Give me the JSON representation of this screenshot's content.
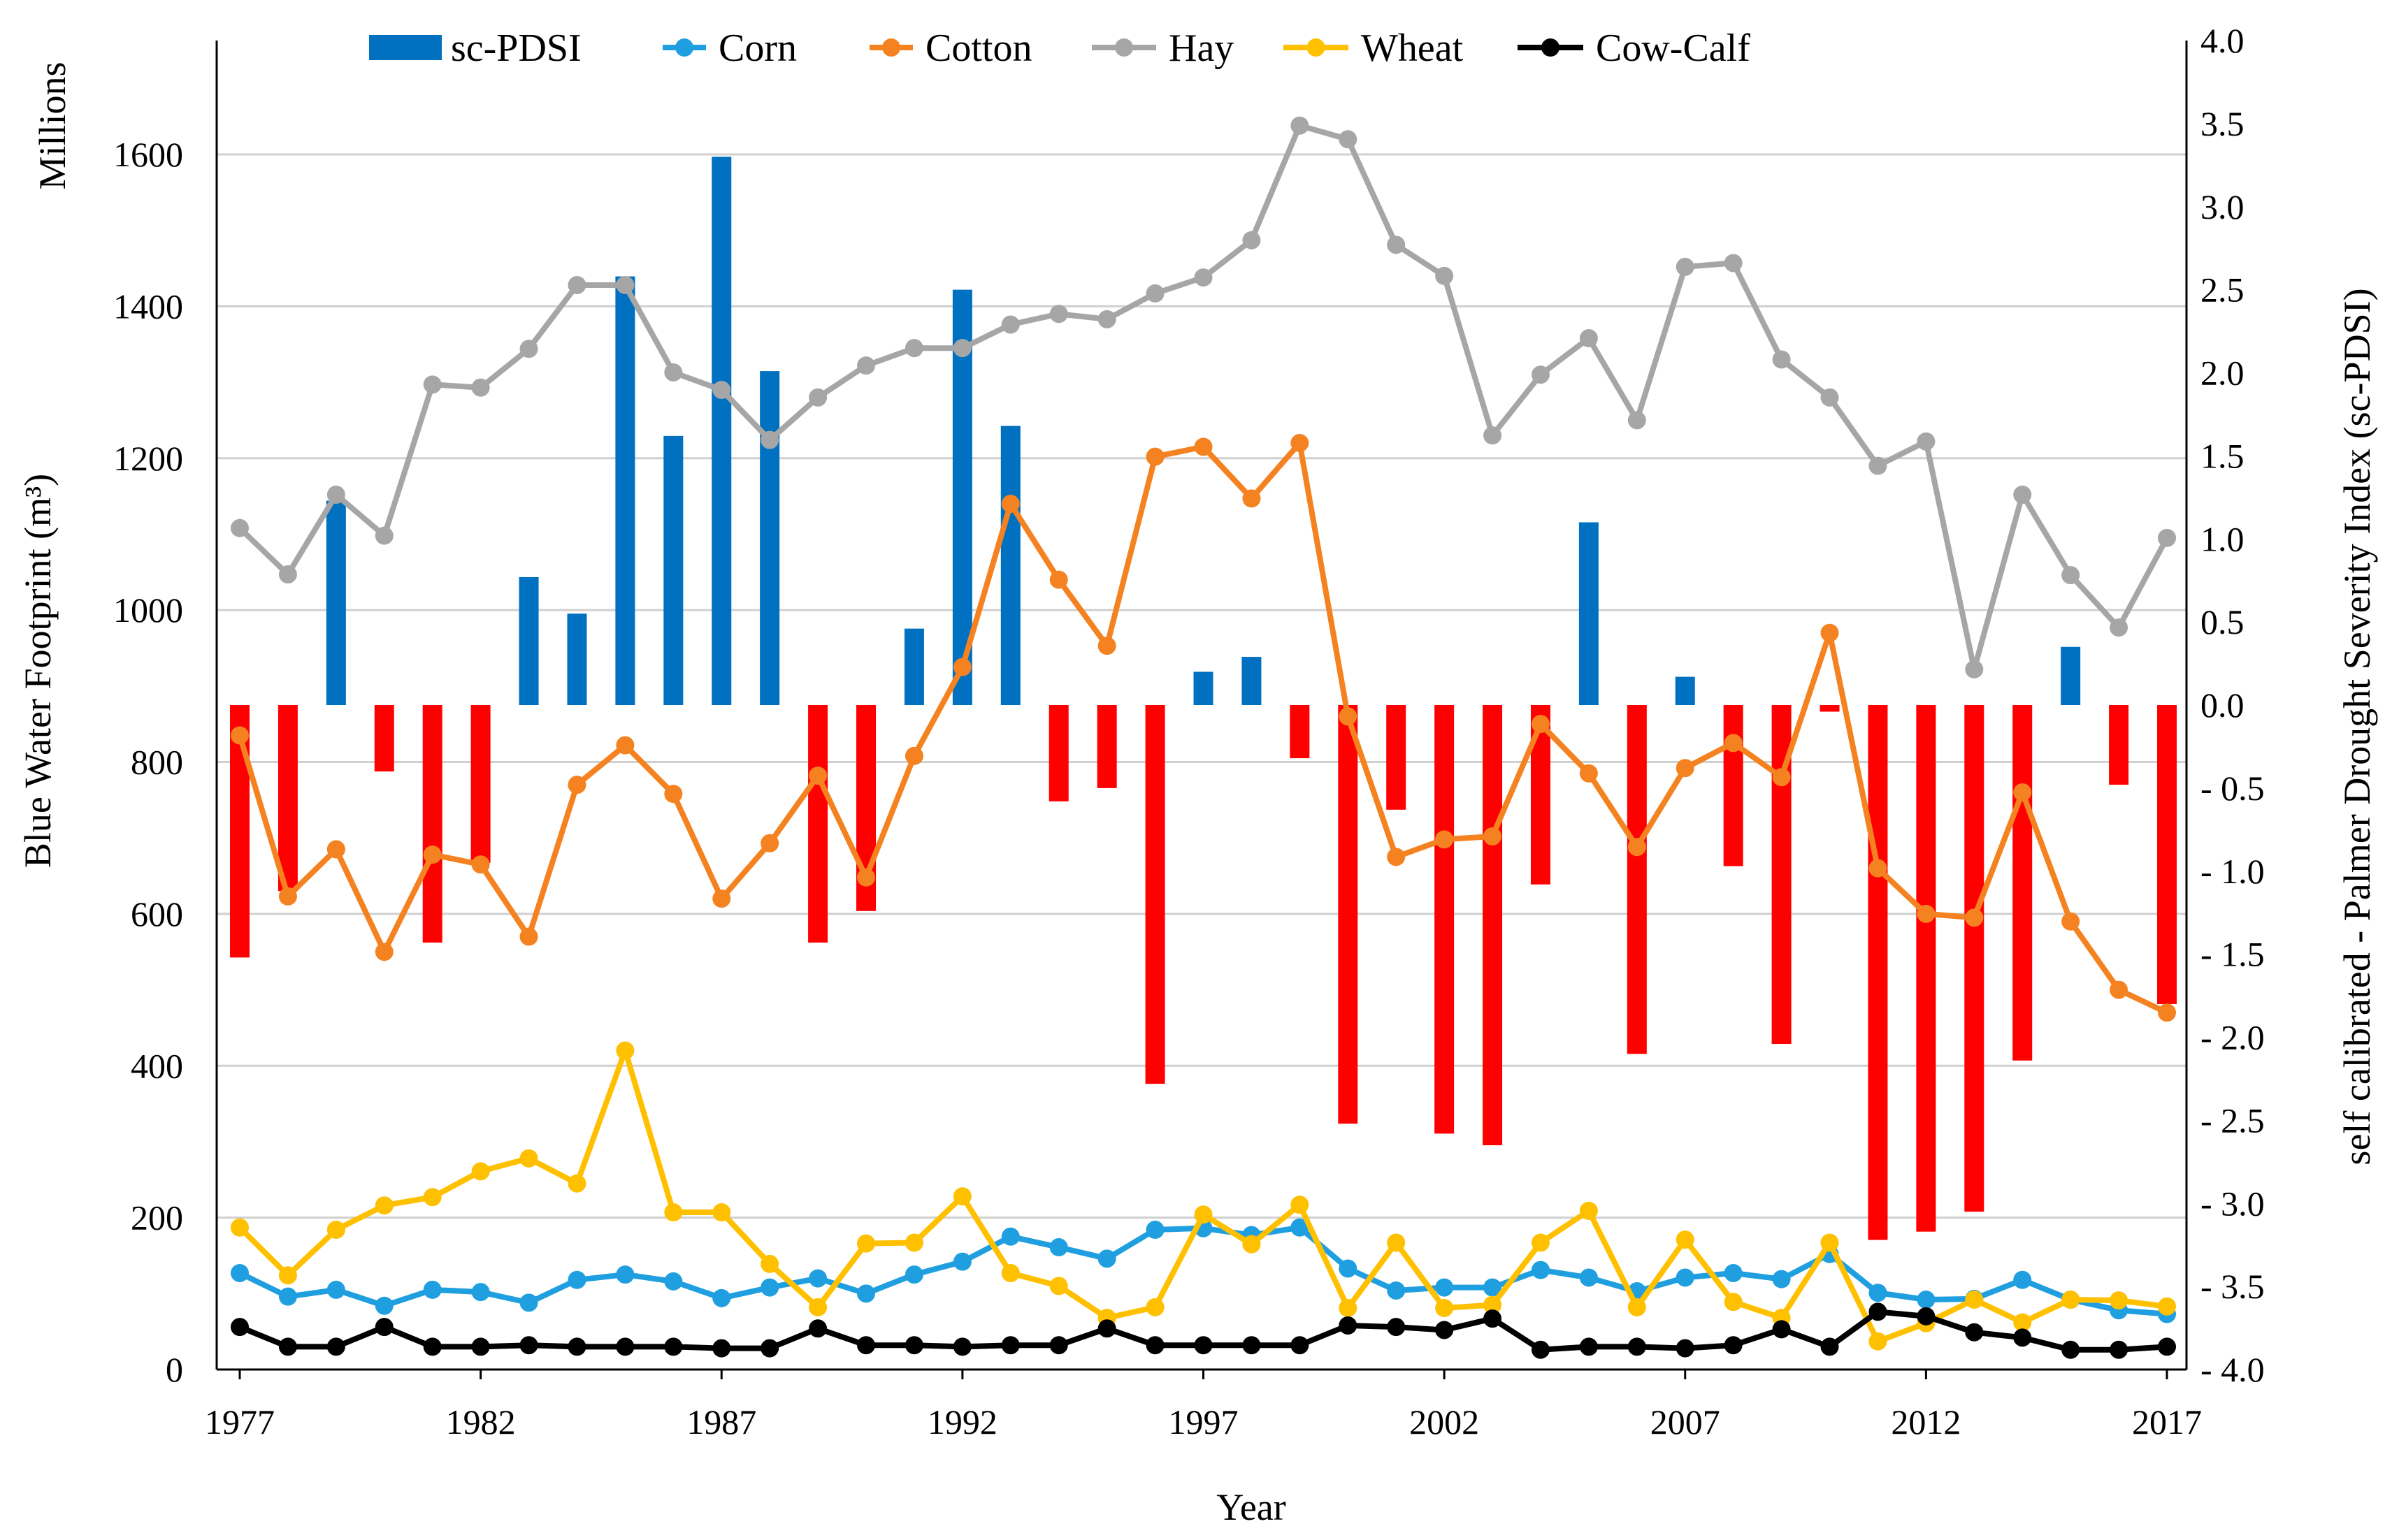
{
  "chart_data": {
    "type": "bar+line",
    "title": "",
    "xlabel": "Year",
    "ylabel_left": "Blue Water Footprint (m³)",
    "ylabel_left_unit_note": "Millions",
    "ylabel_right": "self calibrated - Palmer Drought Severity Index (sc-PDSI)",
    "ylim_left": [
      0,
      1750
    ],
    "ylim_right": [
      -4.0,
      4.0
    ],
    "left_ticks": [
      "0",
      "200",
      "400",
      "600",
      "800",
      "1000",
      "1200",
      "1400",
      "1600"
    ],
    "right_ticks": [
      "4.0",
      "3.5",
      "3.0",
      "2.5",
      "2.0",
      "1.5",
      "1.0",
      "0.5",
      "0.0",
      "- 0.5",
      "- 1.0",
      "- 1.5",
      "- 2.0",
      "- 2.5",
      "- 3.0",
      "- 3.5",
      "- 4.0"
    ],
    "x_ticks": [
      "1977",
      "1982",
      "1987",
      "1992",
      "1997",
      "2002",
      "2007",
      "2012",
      "2017"
    ],
    "years": [
      1977,
      1978,
      1979,
      1980,
      1981,
      1982,
      1983,
      1984,
      1985,
      1986,
      1987,
      1988,
      1989,
      1990,
      1991,
      1992,
      1993,
      1994,
      1995,
      1996,
      1997,
      1998,
      1999,
      2000,
      2001,
      2002,
      2003,
      2004,
      2005,
      2006,
      2007,
      2008,
      2009,
      2010,
      2011,
      2012,
      2013,
      2014,
      2015,
      2016,
      2017
    ],
    "pdsi": {
      "name": "sc-PDSI",
      "positive_color": "#0070C0",
      "negative_color": "#FF0000",
      "values": [
        -1.52,
        -1.12,
        1.23,
        -0.4,
        -1.43,
        -0.95,
        0.77,
        0.55,
        2.58,
        1.62,
        3.3,
        2.01,
        -1.43,
        -1.24,
        0.46,
        2.5,
        1.68,
        -0.58,
        -0.5,
        -2.28,
        0.2,
        0.29,
        -0.32,
        -2.52,
        -0.63,
        -2.58,
        -2.65,
        -1.08,
        1.1,
        -2.1,
        0.17,
        -0.97,
        -2.04,
        -0.04,
        -3.22,
        -3.17,
        -3.05,
        -2.14,
        0.35,
        -0.48,
        -1.8
      ]
    },
    "series": [
      {
        "name": "Corn",
        "color": "#1F9FE0",
        "values": [
          127,
          96,
          105,
          84,
          105,
          102,
          88,
          118,
          125,
          116,
          94,
          108,
          120,
          100,
          125,
          142,
          175,
          161,
          146,
          184,
          186,
          177,
          187,
          133,
          104,
          108,
          108,
          131,
          121,
          103,
          121,
          127,
          119,
          152,
          101,
          92,
          93,
          118,
          92,
          78,
          73
        ]
      },
      {
        "name": "Cotton",
        "color": "#F58220",
        "values": [
          835,
          623,
          685,
          550,
          678,
          665,
          570,
          770,
          822,
          758,
          620,
          693,
          782,
          648,
          808,
          925,
          1140,
          1040,
          953,
          1202,
          1215,
          1147,
          1220,
          860,
          675,
          698,
          702,
          850,
          785,
          688,
          792,
          825,
          780,
          970,
          660,
          600,
          595,
          760,
          590,
          500,
          470
        ]
      },
      {
        "name": "Hay",
        "color": "#A6A6A6",
        "values": [
          1108,
          1047,
          1152,
          1098,
          1297,
          1293,
          1344,
          1428,
          1428,
          1313,
          1290,
          1224,
          1280,
          1322,
          1345,
          1345,
          1376,
          1390,
          1383,
          1417,
          1438,
          1487,
          1638,
          1620,
          1481,
          1440,
          1230,
          1310,
          1358,
          1250,
          1452,
          1457,
          1330,
          1280,
          1190,
          1222,
          922,
          1152,
          1046,
          977,
          1095
        ]
      },
      {
        "name": "Wheat",
        "color": "#FFC000",
        "values": [
          187,
          124,
          184,
          216,
          227,
          261,
          278,
          245,
          420,
          207,
          207,
          139,
          82,
          166,
          167,
          228,
          127,
          110,
          68,
          82,
          204,
          165,
          217,
          81,
          167,
          81,
          85,
          167,
          209,
          82,
          171,
          89,
          68,
          167,
          37,
          61,
          92,
          62,
          92,
          91,
          83
        ]
      },
      {
        "name": "Cow-Calf",
        "color": "#000000",
        "values": [
          56,
          30,
          30,
          56,
          30,
          30,
          32,
          30,
          30,
          30,
          28,
          28,
          54,
          32,
          32,
          30,
          32,
          32,
          54,
          32,
          32,
          32,
          32,
          58,
          56,
          52,
          67,
          26,
          30,
          30,
          28,
          32,
          53,
          30,
          76,
          70,
          49,
          42,
          26,
          26,
          30
        ]
      }
    ],
    "legend": [
      "sc-PDSI",
      "Corn",
      "Cotton",
      "Hay",
      "Wheat",
      "Cow-Calf"
    ],
    "legend_position": "top"
  }
}
